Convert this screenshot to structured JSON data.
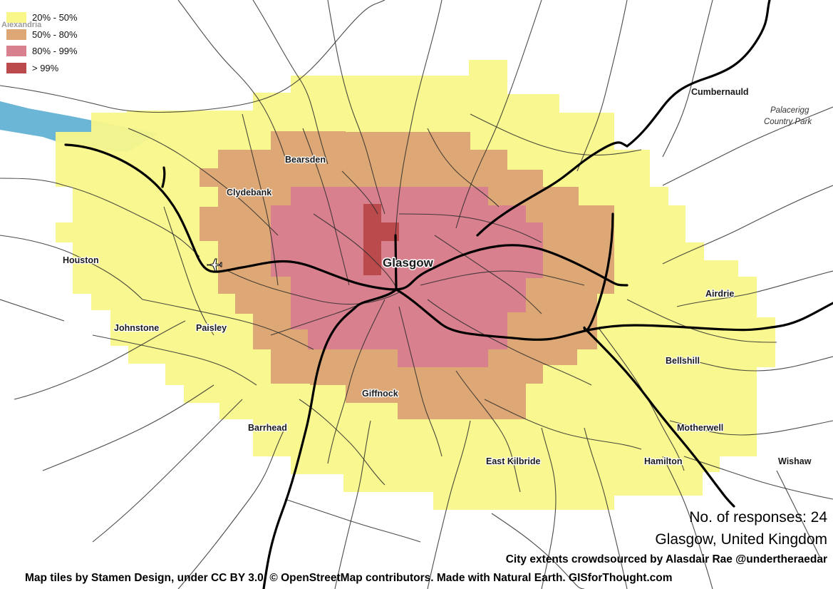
{
  "legend": [
    {
      "label": "20% - 50%",
      "color": "#f9f78a"
    },
    {
      "label": "50% - 80%",
      "color": "#dea876"
    },
    {
      "label": "80% - 99%",
      "color": "#d9808e"
    },
    {
      "label": "> 99%",
      "color": "#bb4a4d"
    }
  ],
  "places": {
    "glasgow": "Glasgow",
    "alexandria": "Alexandria",
    "cumbernauld": "Cumbernauld",
    "palacerigg_line1": "Palacerigg",
    "palacerigg_line2": "Country Park",
    "bearsden": "Bearsden",
    "clydebank": "Clydebank",
    "houston": "Houston",
    "johnstone": "Johnstone",
    "paisley": "Paisley",
    "airdrie": "Airdrie",
    "bellshill": "Bellshill",
    "giffnock": "Giffnock",
    "barrhead": "Barrhead",
    "motherwell": "Motherwell",
    "east_kilbride": "East Kilbride",
    "hamilton": "Hamilton",
    "wishaw": "Wishaw"
  },
  "icons": {
    "airport": "airport-plane-icon"
  },
  "info": {
    "responses": "No. of responses: 24",
    "city": "Glasgow, United Kingdom",
    "credit": "City extents crowdsourced by Alasdair Rae @undertheraedar",
    "tiles": "Map tiles by Stamen Design, under CC BY 3.0. © OpenStreetMap contributors. Made with Natural Earth. GISforThought.com"
  }
}
